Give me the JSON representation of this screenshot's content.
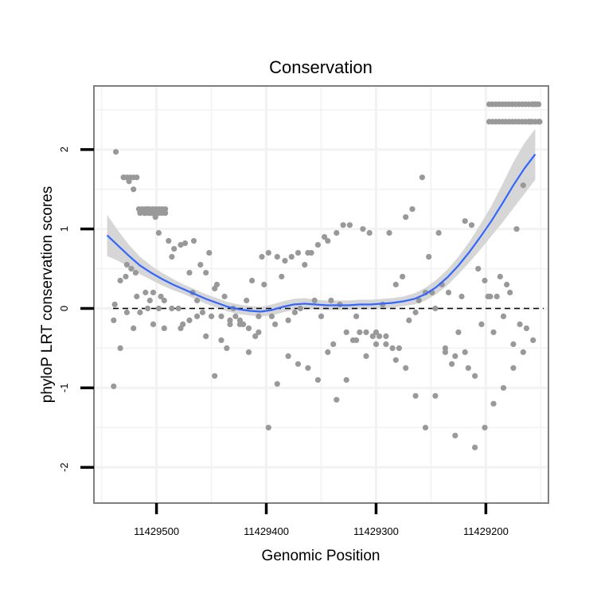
{
  "chart_data": {
    "type": "scatter",
    "title": "Conservation",
    "xlabel": "Genomic Position",
    "ylabel": "phyloP LRT conservation scores",
    "x_reversed": true,
    "xlim": [
      11429557,
      11429143
    ],
    "ylim": [
      -2.45,
      2.8
    ],
    "x_ticks": [
      {
        "value": 11429500,
        "label": "11429500"
      },
      {
        "value": 11429400,
        "label": "11429400"
      },
      {
        "value": 11429300,
        "label": "11429300"
      },
      {
        "value": 11429200,
        "label": "11429200"
      }
    ],
    "y_ticks": [
      {
        "value": 2,
        "label": "2"
      },
      {
        "value": 1,
        "label": "1"
      },
      {
        "value": 0,
        "label": "0"
      },
      {
        "value": -1,
        "label": "-1"
      },
      {
        "value": -2,
        "label": "-2"
      }
    ],
    "grid": true,
    "reference_line": {
      "y": 0,
      "style": "dashed"
    },
    "colors": {
      "points": "#999999",
      "smooth": "#3366ff",
      "band": "#d6d6d6",
      "frame": "#7f7f7f",
      "grid": "#f2f2f2"
    },
    "series": [
      {
        "kind": "points",
        "x": [
          11429539,
          11429538,
          11429537,
          11429533,
          11429530,
          11429528,
          11429527,
          11429525,
          11429523,
          11429521,
          11429519,
          11429518,
          11429516,
          11429515,
          11429513,
          11429511,
          11429510,
          11429508,
          11429506,
          11429505,
          11429503,
          11429501,
          11429498,
          11429496,
          11429493,
          11429489,
          11429486,
          11429484,
          11429480,
          11429478,
          11429476,
          11429474,
          11429470,
          11429467,
          11429466,
          11429463,
          11429460,
          11429458,
          11429455,
          11429452,
          11429450,
          11429447,
          11429445,
          11429441,
          11429438,
          11429436,
          11429433,
          11429430,
          11429428,
          11429424,
          11429421,
          11429418,
          11429416,
          11429413,
          11429410,
          11429407,
          11429404,
          11429402,
          11429398,
          11429395,
          11429392,
          11429390,
          11429386,
          11429383,
          11429380,
          11429377,
          11429374,
          11429371,
          11429369,
          11429365,
          11429362,
          11429359,
          11429356,
          11429353,
          11429350,
          11429347,
          11429344,
          11429341,
          11429339,
          11429336,
          11429333,
          11429330,
          11429327,
          11429324,
          11429321,
          11429318,
          11429315,
          11429312,
          11429309,
          11429306,
          11429303,
          11429300,
          11429297,
          11429294,
          11429291,
          11429288,
          11429285,
          11429282,
          11429279,
          11429276,
          11429273,
          11429270,
          11429267,
          11429264,
          11429261,
          11429258,
          11429255,
          11429252,
          11429249,
          11429246,
          11429243,
          11429240,
          11429237,
          11429234,
          11429231,
          11429228,
          11429225,
          11429222,
          11429219,
          11429216,
          11429213,
          11429210,
          11429207,
          11429204,
          11429201,
          11429198,
          11429196,
          11429193,
          11429190,
          11429187,
          11429184,
          11429181,
          11429178,
          11429175,
          11429172,
          11429169,
          11429166,
          11429163,
          11429160,
          11429157,
          11429154,
          11429151,
          11429539,
          11429533,
          11429527,
          11429521,
          11429515,
          11429508,
          11429503,
          11429498,
          11429493,
          11429486,
          11429478,
          11429470,
          11429463,
          11429455,
          11429447,
          11429441,
          11429433,
          11429424,
          11429416,
          11429407,
          11429398,
          11429390,
          11429380,
          11429371,
          11429362,
          11429353,
          11429344,
          11429336,
          11429327,
          11429318,
          11429309,
          11429300,
          11429291,
          11429282,
          11429273,
          11429264,
          11429255,
          11429246,
          11429237,
          11429228,
          11429219,
          11429210,
          11429201,
          11429193,
          11429184,
          11429175,
          11429166,
          11429157
        ],
        "y": [
          -0.15,
          0.05,
          1.97,
          0.35,
          1.65,
          0.4,
          0.55,
          1.6,
          0.5,
          1.5,
          0.45,
          0.15,
          1.25,
          1.2,
          1.25,
          1.2,
          0.2,
          1.25,
          0.1,
          1.2,
          0.2,
          1.15,
          0.95,
          0.15,
          0.1,
          0.85,
          0.65,
          0.75,
          0.0,
          0.8,
          -0.2,
          0.82,
          0.45,
          0.2,
          0.85,
          0.1,
          0.55,
          -0.05,
          0.45,
          0.7,
          -0.1,
          0.25,
          0.3,
          -0.4,
          0.15,
          -0.5,
          -0.2,
          0.0,
          -0.1,
          -0.15,
          -0.2,
          0.1,
          -0.55,
          0.35,
          -0.35,
          -0.1,
          0.65,
          0.3,
          0.7,
          -0.1,
          -0.2,
          0.65,
          0.4,
          0.6,
          -0.15,
          0.65,
          -0.05,
          0.7,
          0.0,
          0.55,
          0.7,
          0.7,
          0.1,
          0.8,
          -0.1,
          0.9,
          0.85,
          0.1,
          -0.45,
          0.95,
          0.05,
          1.05,
          -0.3,
          1.05,
          -0.4,
          -0.1,
          -0.3,
          1.0,
          -0.3,
          0.95,
          -0.35,
          -0.3,
          -0.35,
          0.05,
          -0.45,
          0.95,
          -0.5,
          0.3,
          -0.5,
          0.4,
          1.15,
          -0.15,
          1.25,
          -0.05,
          0.1,
          1.65,
          0.2,
          0.65,
          0.2,
          0.0,
          0.95,
          0.3,
          -0.5,
          0.2,
          -0.7,
          -0.6,
          -0.3,
          0.15,
          1.1,
          -0.75,
          1.05,
          -0.85,
          0.5,
          -0.2,
          0.35,
          0.15,
          0.15,
          -0.3,
          0.15,
          0.4,
          -0.1,
          0.3,
          0.2,
          -0.45,
          1.0,
          -0.2,
          1.55,
          -0.25,
          2.35,
          2.57,
          2.57,
          2.35,
          -0.98,
          -0.5,
          -0.05,
          -0.25,
          -0.05,
          0.0,
          -0.2,
          0.0,
          -0.25,
          0.0,
          -0.25,
          -0.15,
          -0.1,
          -0.35,
          -0.85,
          -0.1,
          -0.15,
          -0.2,
          -0.25,
          -0.3,
          -1.5,
          -0.95,
          -0.6,
          -0.7,
          -0.75,
          -0.9,
          -0.55,
          -1.15,
          -0.9,
          -0.4,
          -0.6,
          -0.45,
          -0.35,
          -0.65,
          -0.75,
          -1.1,
          -1.5,
          -1.1,
          -0.55,
          -1.6,
          -0.55,
          -1.75,
          -1.5,
          -1.2,
          -1.0,
          -0.75,
          -0.55,
          -0.4
        ]
      },
      {
        "kind": "smooth",
        "x": [
          11429545,
          11429535,
          11429525,
          11429515,
          11429505,
          11429495,
          11429485,
          11429475,
          11429465,
          11429455,
          11429445,
          11429435,
          11429425,
          11429415,
          11429405,
          11429395,
          11429385,
          11429375,
          11429365,
          11429355,
          11429345,
          11429335,
          11429325,
          11429315,
          11429305,
          11429295,
          11429285,
          11429275,
          11429265,
          11429255,
          11429245,
          11429235,
          11429225,
          11429215,
          11429205,
          11429195,
          11429185,
          11429175,
          11429165,
          11429155
        ],
        "y": [
          0.92,
          0.79,
          0.66,
          0.54,
          0.45,
          0.37,
          0.3,
          0.24,
          0.18,
          0.12,
          0.07,
          0.02,
          -0.01,
          -0.03,
          -0.04,
          -0.02,
          0.02,
          0.05,
          0.06,
          0.05,
          0.04,
          0.04,
          0.04,
          0.05,
          0.05,
          0.06,
          0.07,
          0.09,
          0.12,
          0.18,
          0.27,
          0.39,
          0.54,
          0.71,
          0.9,
          1.1,
          1.32,
          1.55,
          1.76,
          1.94
        ],
        "band_lower": [
          0.66,
          0.6,
          0.52,
          0.43,
          0.36,
          0.29,
          0.23,
          0.18,
          0.12,
          0.06,
          0.01,
          -0.04,
          -0.07,
          -0.09,
          -0.1,
          -0.09,
          -0.05,
          -0.02,
          -0.01,
          -0.01,
          -0.02,
          -0.02,
          -0.02,
          -0.01,
          -0.01,
          0.0,
          0.01,
          0.03,
          0.05,
          0.1,
          0.18,
          0.29,
          0.43,
          0.58,
          0.74,
          0.91,
          1.08,
          1.26,
          1.44,
          1.62
        ],
        "band_upper": [
          1.18,
          0.98,
          0.8,
          0.65,
          0.54,
          0.45,
          0.37,
          0.3,
          0.24,
          0.18,
          0.13,
          0.08,
          0.05,
          0.03,
          0.02,
          0.05,
          0.09,
          0.12,
          0.13,
          0.11,
          0.1,
          0.1,
          0.1,
          0.11,
          0.11,
          0.12,
          0.13,
          0.15,
          0.19,
          0.26,
          0.36,
          0.49,
          0.65,
          0.84,
          1.06,
          1.29,
          1.56,
          1.84,
          2.08,
          2.26
        ]
      }
    ]
  }
}
